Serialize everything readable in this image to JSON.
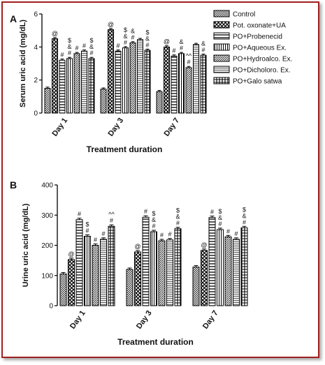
{
  "chart_data": [
    {
      "panel": "A",
      "type": "bar",
      "ylabel": "Serum uric acid (mg/dL)",
      "xlabel": "Treatment duration",
      "categories": [
        "Day 1",
        "Day 3",
        "Day 7"
      ],
      "ylim": [
        0,
        6
      ],
      "yticks": [
        0,
        2,
        4,
        6
      ],
      "series": [
        {
          "name": "Control",
          "values": [
            1.5,
            1.45,
            1.3
          ]
        },
        {
          "name": "Pot. oxonate+UA",
          "values": [
            4.5,
            5.05,
            4.0
          ]
        },
        {
          "name": "PO+Probenecid",
          "values": [
            3.2,
            3.75,
            3.45
          ]
        },
        {
          "name": "PO+Aqueous Ex.",
          "values": [
            3.3,
            3.95,
            3.6
          ]
        },
        {
          "name": "PO+Hydroalco. Ex.",
          "values": [
            3.6,
            4.25,
            2.75
          ]
        },
        {
          "name": "PO+Dicholoro. Ex.",
          "values": [
            3.75,
            4.45,
            4.15
          ]
        },
        {
          "name": "PO+Galo satwa",
          "values": [
            3.3,
            3.8,
            3.5
          ]
        }
      ],
      "annotations": [
        [
          "",
          "@",
          "#",
          "$ & #",
          "#",
          "#",
          "$ & #"
        ],
        [
          "",
          "@",
          "#",
          "$ & #",
          "& #",
          "",
          "$ & #"
        ],
        [
          "",
          "@",
          "#",
          "& #",
          "^^ #",
          "",
          "& #"
        ]
      ]
    },
    {
      "panel": "B",
      "type": "bar",
      "ylabel": "Urine uric acid (mg/dL)",
      "xlabel": "Treatment duration",
      "categories": [
        "Day 1",
        "Day 3",
        "Day 7"
      ],
      "ylim": [
        0,
        400
      ],
      "yticks": [
        0,
        100,
        200,
        300,
        400
      ],
      "series": [
        {
          "name": "Control",
          "values": [
            105,
            120,
            128
          ]
        },
        {
          "name": "Pot. oxonate+UA",
          "values": [
            153,
            178,
            183
          ]
        },
        {
          "name": "PO+Probenecid",
          "values": [
            285,
            293,
            292
          ]
        },
        {
          "name": "PO+Aqueous Ex.",
          "values": [
            230,
            245,
            252
          ]
        },
        {
          "name": "PO+Hydroalco. Ex.",
          "values": [
            200,
            215,
            228
          ]
        },
        {
          "name": "PO+Dicholoro. Ex.",
          "values": [
            220,
            218,
            220
          ]
        },
        {
          "name": "PO+Galo satwa",
          "values": [
            263,
            255,
            258
          ]
        }
      ],
      "annotations": [
        [
          "",
          "@",
          "#",
          "$ #",
          "#",
          "#",
          "^^ #"
        ],
        [
          "",
          "@",
          "#",
          "$ & #",
          "#",
          "#",
          "$ & #"
        ],
        [
          "",
          "@",
          "#",
          "$ & #",
          "#",
          "#",
          "$ & #"
        ]
      ]
    }
  ]
}
